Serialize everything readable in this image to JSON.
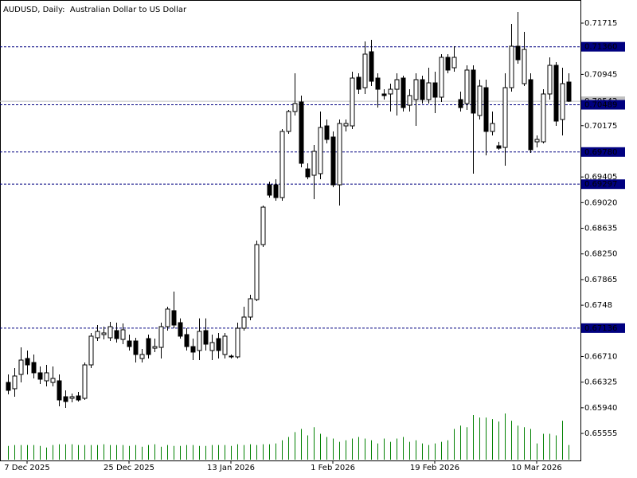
{
  "chart_data": {
    "type": "candlestick",
    "title": "AUDUSD, Daily:  Australian Dollar to US Dollar",
    "categories": [
      null,
      null,
      null,
      "7 Dec 2025",
      null,
      null,
      null,
      null,
      null,
      null,
      null,
      null,
      null,
      null,
      null,
      null,
      null,
      null,
      null,
      "25 Dec 2025",
      null,
      null,
      null,
      null,
      null,
      null,
      null,
      null,
      null,
      null,
      null,
      null,
      null,
      null,
      null,
      "13 Jan 2026",
      null,
      null,
      null,
      null,
      null,
      null,
      null,
      null,
      null,
      null,
      null,
      null,
      null,
      null,
      null,
      "1 Feb 2026",
      null,
      null,
      null,
      null,
      null,
      null,
      null,
      null,
      null,
      null,
      null,
      null,
      null,
      null,
      null,
      "19 Feb 2026",
      null,
      null,
      null,
      null,
      null,
      null,
      null,
      null,
      null,
      null,
      null,
      null,
      null,
      null,
      null,
      "10 Mar 2026",
      null,
      null,
      null,
      null,
      null
    ],
    "open": [
      0.66321,
      0.66226,
      0.66441,
      0.6668,
      0.6662,
      0.66465,
      0.66345,
      0.66321,
      0.66345,
      0.66106,
      0.66082,
      0.66118,
      0.66082,
      0.66584,
      0.66991,
      0.67039,
      0.66991,
      0.67099,
      0.66967,
      0.66943,
      0.66943,
      0.6668,
      0.66979,
      0.66835,
      0.66847,
      0.67158,
      0.67398,
      0.67218,
      0.67039,
      0.66859,
      0.668,
      0.67099,
      0.668,
      0.66979,
      0.6674,
      0.66716,
      0.66704,
      0.67134,
      0.67302,
      0.67565,
      0.6839,
      0.69287,
      0.69287,
      0.69096,
      0.70089,
      0.70388,
      0.70531,
      0.69526,
      0.69431,
      0.69455,
      0.70172,
      0.70005,
      0.69287,
      0.70172,
      0.70172,
      0.70902,
      0.70746,
      0.71285,
      0.7089,
      0.70651,
      0.70651,
      0.70722,
      0.7089,
      0.70483,
      0.70567,
      0.70866,
      0.70567,
      0.70818,
      0.70603,
      0.71201,
      0.71045,
      0.70567,
      0.70507,
      0.7101,
      0.70328,
      0.70746,
      0.70089,
      0.69873,
      0.69849,
      0.70746,
      0.71368,
      0.70806,
      0.70866,
      0.69933,
      0.69933,
      0.70651,
      0.71081,
      0.70268,
      0.7083
    ],
    "high": [
      0.66441,
      0.66536,
      0.66847,
      0.668,
      0.6674,
      0.6656,
      0.66584,
      0.6656,
      0.66441,
      0.66202,
      0.66154,
      0.66178,
      0.6662,
      0.67063,
      0.67182,
      0.67158,
      0.6723,
      0.67218,
      0.67206,
      0.67039,
      0.66991,
      0.66824,
      0.67039,
      0.66979,
      0.67218,
      0.67457,
      0.67685,
      0.67282,
      0.67134,
      0.66979,
      0.67282,
      0.67282,
      0.67039,
      0.67063,
      0.67063,
      0.6674,
      0.67218,
      0.67457,
      0.67637,
      0.6845,
      0.68976,
      0.69335,
      0.69371,
      0.70124,
      0.70412,
      0.70962,
      0.70627,
      0.6961,
      0.69885,
      0.70388,
      0.70268,
      0.70089,
      0.70268,
      0.70268,
      0.70986,
      0.70962,
      0.7144,
      0.71464,
      0.70962,
      0.70722,
      0.70806,
      0.70962,
      0.70926,
      0.70722,
      0.70962,
      0.70926,
      0.71045,
      0.70986,
      0.71249,
      0.71249,
      0.71368,
      0.70687,
      0.71081,
      0.71081,
      0.70866,
      0.70866,
      0.70388,
      0.69933,
      0.70962,
      0.71703,
      0.71883,
      0.71584,
      0.70962,
      0.70029,
      0.70722,
      0.71201,
      0.71129,
      0.71045,
      0.70962
    ],
    "low": [
      0.66142,
      0.66106,
      0.66321,
      0.66441,
      0.66381,
      0.66297,
      0.66261,
      0.66261,
      0.65962,
      0.65938,
      0.66022,
      0.66034,
      0.66058,
      0.66536,
      0.66943,
      0.66967,
      0.66943,
      0.66919,
      0.66895,
      0.668,
      0.6662,
      0.6662,
      0.6668,
      0.66776,
      0.6668,
      0.67099,
      0.67134,
      0.66979,
      0.668,
      0.66656,
      0.66656,
      0.668,
      0.66656,
      0.6668,
      0.6668,
      0.6668,
      0.6668,
      0.67099,
      0.67254,
      0.67541,
      0.68354,
      0.69096,
      0.69048,
      0.69048,
      0.70053,
      0.70328,
      0.6955,
      0.69371,
      0.69072,
      0.69371,
      0.69909,
      0.69251,
      0.68976,
      0.70089,
      0.70124,
      0.70651,
      0.70651,
      0.7077,
      0.70447,
      0.70567,
      0.70388,
      0.70328,
      0.70388,
      0.70388,
      0.70172,
      0.70507,
      0.70507,
      0.70364,
      0.70531,
      0.70962,
      0.70986,
      0.70388,
      0.70412,
      0.69455,
      0.70268,
      0.6973,
      0.70029,
      0.69814,
      0.69574,
      0.70687,
      0.71105,
      0.7077,
      0.69766,
      0.69849,
      0.69909,
      0.70567,
      0.70172,
      0.70029,
      0.70531
    ],
    "close": [
      0.66202,
      0.66417,
      0.66656,
      0.66584,
      0.66465,
      0.66369,
      0.66465,
      0.66381,
      0.66058,
      0.66034,
      0.66106,
      0.66058,
      0.66584,
      0.67015,
      0.67087,
      0.67063,
      0.67158,
      0.66979,
      0.67111,
      0.66859,
      0.6674,
      0.6674,
      0.6674,
      0.66859,
      0.67158,
      0.67422,
      0.67182,
      0.67015,
      0.66859,
      0.66776,
      0.67087,
      0.66895,
      0.66919,
      0.668,
      0.67015,
      0.66704,
      0.67134,
      0.67302,
      0.67577,
      0.6839,
      0.68952,
      0.69132,
      0.69096,
      0.70089,
      0.70388,
      0.70507,
      0.6961,
      0.69407,
      0.6979,
      0.70148,
      0.69969,
      0.69287,
      0.70208,
      0.70208,
      0.7089,
      0.70722,
      0.71249,
      0.70842,
      0.70722,
      0.70627,
      0.70722,
      0.70866,
      0.70447,
      0.70627,
      0.70866,
      0.70567,
      0.70818,
      0.70603,
      0.71201,
      0.7101,
      0.71201,
      0.70447,
      0.7101,
      0.70364,
      0.7077,
      0.70089,
      0.70208,
      0.69837,
      0.70746,
      0.71368,
      0.71165,
      0.7132,
      0.69814,
      0.69969,
      0.70651,
      0.71081,
      0.70244,
      0.70806,
      0.70542
    ],
    "volume": [
      17,
      18,
      18,
      18,
      18,
      17,
      15,
      18,
      19,
      19,
      19,
      18,
      18,
      18,
      18,
      19,
      18,
      18,
      18,
      17,
      18,
      16,
      18,
      19,
      16,
      18,
      17,
      17,
      18,
      18,
      17,
      17,
      18,
      18,
      18,
      17,
      19,
      18,
      19,
      18,
      19,
      19,
      20,
      24,
      28,
      34,
      38,
      30,
      40,
      32,
      28,
      26,
      22,
      24,
      26,
      28,
      26,
      24,
      20,
      26,
      22,
      26,
      28,
      22,
      24,
      20,
      18,
      20,
      22,
      24,
      38,
      42,
      40,
      55,
      52,
      52,
      50,
      47,
      57,
      48,
      42,
      40,
      38,
      20,
      32,
      32,
      30,
      48,
      18
    ],
    "ylim": [
      0.65149,
      0.72062
    ],
    "yticks": [
      0.71715,
      0.70945,
      0.70175,
      0.69405,
      {
        "value": 0.6902,
        "label": "0.69020"
      },
      0.68635,
      {
        "value": 0.6825,
        "label": "0.68250"
      },
      0.67865,
      0.6748,
      {
        "value": 0.6671,
        "label": "0.66710"
      },
      0.66325,
      {
        "value": 0.6594,
        "label": "0.65940"
      },
      0.65555
    ],
    "levels": [
      {
        "value": 0.7136,
        "label": "0.71360"
      },
      0.70489,
      {
        "value": 0.6978,
        "label": "0.69780"
      },
      0.69297,
      0.67136
    ],
    "last_price": 0.70542,
    "up_color": "#ffffff",
    "down_color": "#000000",
    "volume_color": "#008000",
    "level_color": "#000080",
    "last_price_color": "#c0c0c0"
  }
}
